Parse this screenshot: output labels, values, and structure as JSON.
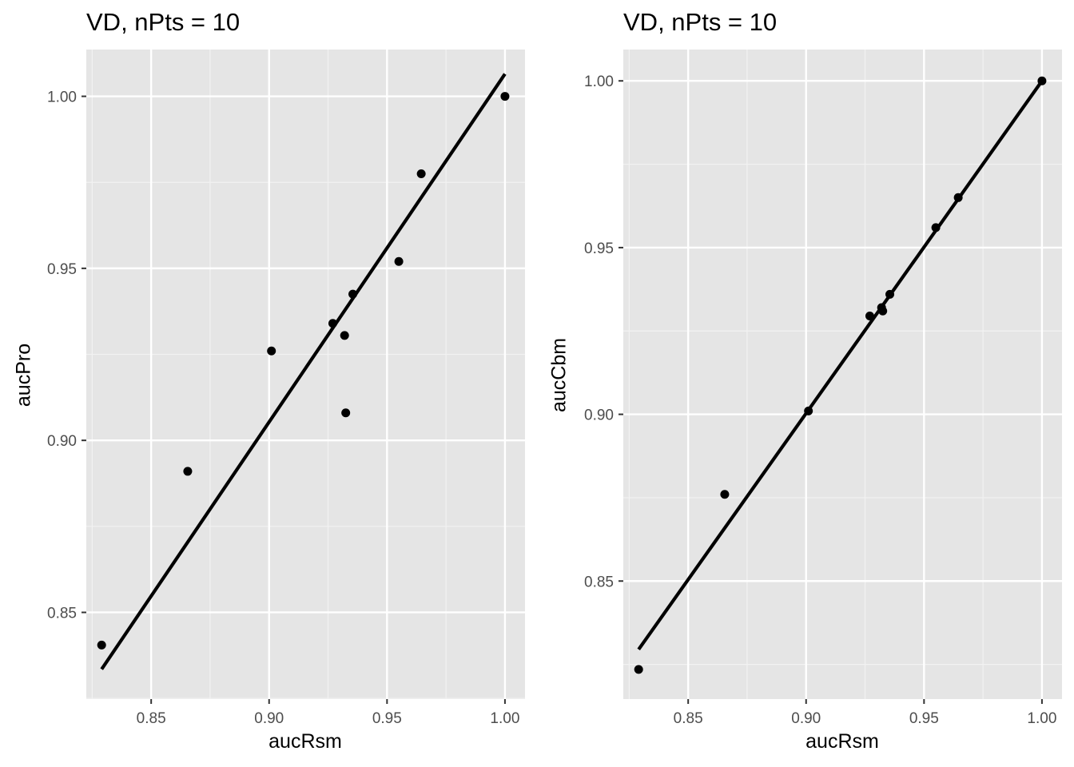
{
  "chart_data": [
    {
      "type": "scatter",
      "title": "VD, nPts = 10",
      "xlabel": "aucRsm",
      "ylabel": "aucPro",
      "xlim": [
        0.8225,
        1.0085
      ],
      "ylim": [
        0.8248,
        1.0136
      ],
      "x_ticks": [
        "0.85",
        "0.90",
        "0.95",
        "1.00"
      ],
      "y_ticks": [
        "0.85",
        "0.90",
        "0.95",
        "1.00"
      ],
      "grid": true,
      "points": [
        {
          "x": 0.829,
          "y": 0.8405
        },
        {
          "x": 0.8655,
          "y": 0.891
        },
        {
          "x": 0.901,
          "y": 0.926
        },
        {
          "x": 0.927,
          "y": 0.934
        },
        {
          "x": 0.932,
          "y": 0.9305
        },
        {
          "x": 0.9325,
          "y": 0.908
        },
        {
          "x": 0.9355,
          "y": 0.9425
        },
        {
          "x": 0.955,
          "y": 0.952
        },
        {
          "x": 0.9645,
          "y": 0.9775
        },
        {
          "x": 1.0,
          "y": 1.0
        }
      ],
      "fit_line": {
        "x": [
          0.829,
          1.0
        ],
        "y": [
          0.8335,
          1.0065
        ]
      }
    },
    {
      "type": "scatter",
      "title": "VD, nPts = 10",
      "xlabel": "aucRsm",
      "ylabel": "aucCbm",
      "xlim": [
        0.8225,
        1.0085
      ],
      "ylim": [
        0.8146,
        1.0094
      ],
      "x_ticks": [
        "0.85",
        "0.90",
        "0.95",
        "1.00"
      ],
      "y_ticks": [
        "0.85",
        "0.90",
        "0.95",
        "1.00"
      ],
      "grid": true,
      "points": [
        {
          "x": 0.829,
          "y": 0.8235
        },
        {
          "x": 0.8655,
          "y": 0.876
        },
        {
          "x": 0.901,
          "y": 0.901
        },
        {
          "x": 0.927,
          "y": 0.9295
        },
        {
          "x": 0.932,
          "y": 0.932
        },
        {
          "x": 0.9325,
          "y": 0.931
        },
        {
          "x": 0.9355,
          "y": 0.936
        },
        {
          "x": 0.955,
          "y": 0.956
        },
        {
          "x": 0.9645,
          "y": 0.965
        },
        {
          "x": 1.0,
          "y": 1.0
        }
      ],
      "fit_line": {
        "x": [
          0.829,
          1.0
        ],
        "y": [
          0.8295,
          1.0
        ]
      }
    }
  ]
}
